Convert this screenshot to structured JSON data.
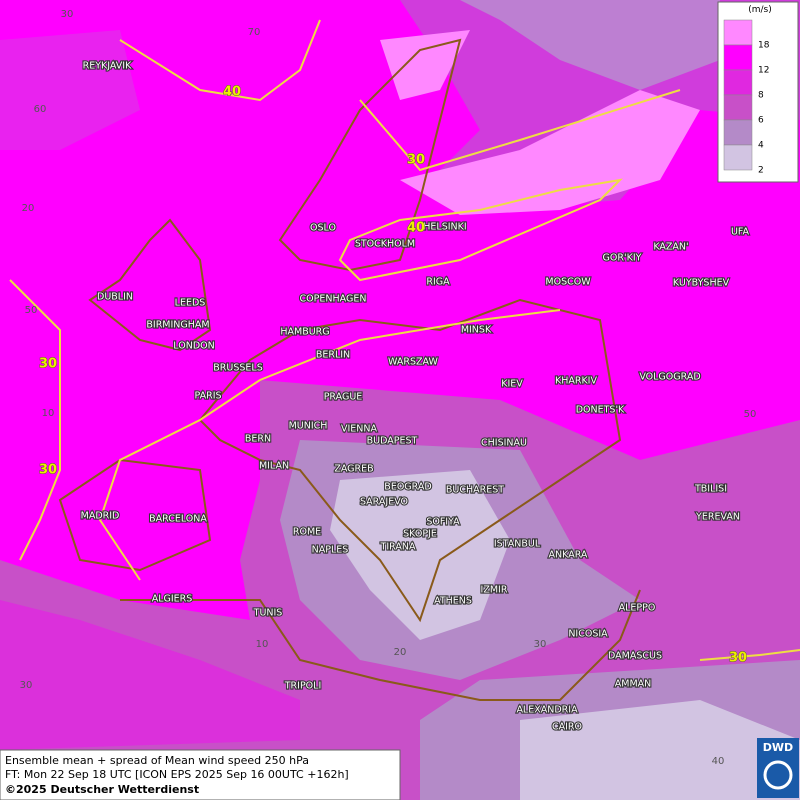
{
  "map": {
    "cities": [
      "REYKJAVIK",
      "OSLO",
      "HELSINKI",
      "STOCKHOLM",
      "RIGA",
      "GOR'KIY",
      "KAZAN'",
      "UFA",
      "MOSCOW",
      "KUYBYSHEV",
      "DUBLIN",
      "LEEDS",
      "COPENHAGEN",
      "BIRMINGHAM",
      "HAMBURG",
      "MINSK",
      "LONDON",
      "BERLIN",
      "WARSZAW",
      "BRUSSELS",
      "KIEV",
      "KHARKIV",
      "VOLGOGRAD",
      "PARIS",
      "PRAGUE",
      "DONETS'K",
      "MUNICH",
      "VIENNA",
      "BERN",
      "BUDAPEST",
      "CHISINAU",
      "MILAN",
      "ZAGREB",
      "BEOGRAD",
      "BUCHAREST",
      "TBILISI",
      "SARAJEVO",
      "MADRID",
      "BARCELONA",
      "SOFIYA",
      "YEREVAN",
      "ROME",
      "SKOPJE",
      "ISTANBUL",
      "NAPLES",
      "TIRANA",
      "ANKARA",
      "IZMIR",
      "ALGIERS",
      "ATHENS",
      "ALEPPO",
      "TUNIS",
      "NICOSIA",
      "DAMASCUS",
      "AMMAN",
      "TRIPOLI",
      "ALEXANDRIA",
      "CAIRO"
    ],
    "contour_labels": [
      "40",
      "30",
      "40",
      "30",
      "30",
      "30"
    ],
    "grid_labels": [
      "30",
      "70",
      "60",
      "20",
      "50",
      "10",
      "10",
      "20",
      "30",
      "30",
      "40",
      "50"
    ],
    "legend": {
      "unit": "(m/s)",
      "levels": [
        18,
        12,
        8,
        6,
        4,
        2
      ],
      "colors": [
        "#ff88ff",
        "#ff00ff",
        "#e028e0",
        "#c850c8",
        "#b48ac8",
        "#d2c4e2"
      ]
    }
  },
  "footer": {
    "line1": "Ensemble mean + spread of Mean wind speed 250 hPa",
    "line2": "FT: Mon 22 Sep 18 UTC [ICON EPS 2025 Sep 16 00UTC +162h]",
    "line3": "©2025 Deutscher Wetterdienst"
  },
  "logo": "DWD"
}
